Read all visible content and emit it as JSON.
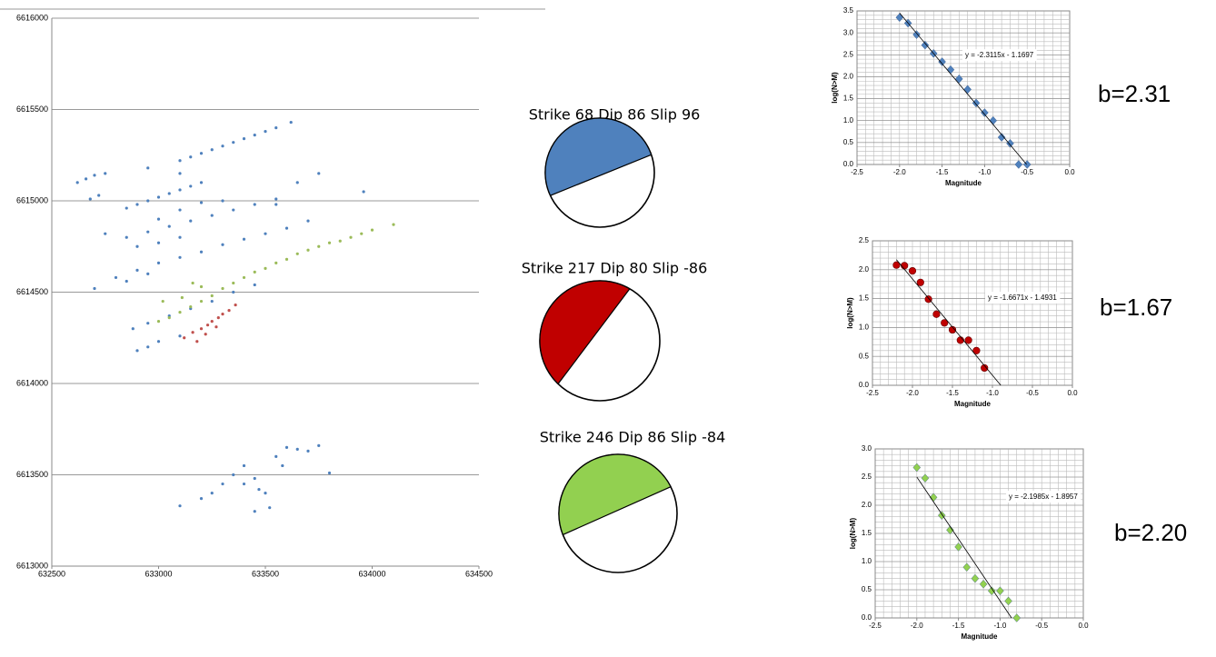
{
  "chart_data": [
    {
      "type": "scatter",
      "xlim": [
        632500,
        634500
      ],
      "xticks": [
        632500,
        633000,
        633500,
        634000,
        634500
      ],
      "ylim": [
        6613000,
        6616000
      ],
      "yticks": [
        6613000,
        6613500,
        6614000,
        6614500,
        6615000,
        6615500,
        6616000
      ],
      "grid": true,
      "marker": "circle",
      "series": [
        {
          "color": "#4f81bd",
          "x": [
            633100,
            633150,
            633200,
            633250,
            633300,
            633350,
            633400,
            633450,
            633500,
            633550,
            633620,
            632620,
            632660,
            632700,
            632750,
            632680,
            632720,
            632900,
            632950,
            633000,
            633050,
            633100,
            633150,
            633200,
            632850,
            633000,
            633100,
            633200,
            632750,
            632850,
            632950,
            633050,
            633150,
            633250,
            633350,
            633450,
            633550,
            632900,
            633000,
            633100,
            632800,
            632900,
            633000,
            633100,
            633200,
            633300,
            633400,
            633500,
            633600,
            633700,
            632850,
            632950,
            632700,
            632880,
            632950,
            633050,
            633150,
            633250,
            633350,
            633450,
            632900,
            632950,
            633000,
            633100,
            633300,
            633550,
            633750,
            633960,
            633650,
            632950,
            633100,
            633250,
            633300,
            633350,
            633400,
            633450,
            633500,
            633550,
            633600,
            633650,
            633700,
            633750,
            633800,
            633100,
            633200,
            633450,
            633520,
            633400,
            633470,
            633580
          ],
          "values": [
            6615220,
            6615240,
            6615260,
            6615280,
            6615300,
            6615320,
            6615340,
            6615360,
            6615380,
            6615400,
            6615430,
            6615100,
            6615120,
            6615140,
            6615150,
            6615010,
            6615030,
            6614980,
            6615000,
            6615020,
            6615040,
            6615060,
            6615080,
            6615100,
            6614960,
            6614900,
            6614950,
            6614990,
            6614820,
            6614800,
            6614830,
            6614860,
            6614890,
            6614920,
            6614950,
            6614980,
            6615010,
            6614750,
            6614770,
            6614800,
            6614580,
            6614620,
            6614660,
            6614690,
            6614720,
            6614760,
            6614790,
            6614820,
            6614850,
            6614890,
            6614560,
            6614600,
            6614520,
            6614300,
            6614330,
            6614370,
            6614410,
            6614450,
            6614500,
            6614540,
            6614180,
            6614200,
            6614230,
            6614260,
            6615000,
            6614980,
            6615150,
            6615050,
            6615100,
            6615180,
            6615150,
            6613400,
            6613450,
            6613500,
            6613550,
            6613480,
            6613400,
            6613600,
            6613650,
            6613640,
            6613630,
            6613660,
            6613510,
            6613330,
            6613370,
            6613300,
            6613320,
            6613450,
            6613420,
            6613550
          ]
        },
        {
          "color": "#9bbb59",
          "x": [
            633000,
            633050,
            633100,
            633150,
            633200,
            633250,
            633300,
            633350,
            633400,
            633450,
            633500,
            633550,
            633600,
            633650,
            633700,
            633750,
            633800,
            633850,
            633900,
            633950,
            634000,
            634100,
            633160,
            633200,
            633110,
            633020
          ],
          "values": [
            6614340,
            6614360,
            6614390,
            6614420,
            6614450,
            6614480,
            6614520,
            6614550,
            6614580,
            6614610,
            6614630,
            6614660,
            6614680,
            6614710,
            6614730,
            6614750,
            6614770,
            6614780,
            6614800,
            6614820,
            6614840,
            6614870,
            6614550,
            6614530,
            6614470,
            6614450
          ]
        },
        {
          "color": "#c0504d",
          "x": [
            633120,
            633160,
            633200,
            633230,
            633250,
            633280,
            633300,
            633330,
            633360,
            633220,
            633180,
            633270
          ],
          "values": [
            6614250,
            6614280,
            6614300,
            6614320,
            6614340,
            6614360,
            6614380,
            6614400,
            6614430,
            6614270,
            6614230,
            6614310
          ]
        }
      ]
    },
    {
      "type": "focal-mechanism",
      "title": "Strike 68 Dip 86 Slip 96",
      "strike": 68,
      "dip": 86,
      "slip": 96,
      "color": "#4f81bd"
    },
    {
      "type": "focal-mechanism",
      "title": "Strike 217 Dip 80 Slip -86",
      "strike": 217,
      "dip": 80,
      "slip": -86,
      "color": "#c00000"
    },
    {
      "type": "focal-mechanism",
      "title": "Strike 246 Dip 86 Slip -84",
      "strike": 246,
      "dip": 86,
      "slip": -84,
      "color": "#92d050"
    },
    {
      "type": "scatter",
      "xlabel": "Magnitude",
      "ylabel": "log(N>M)",
      "annotation": "b=2.31",
      "grid": true,
      "minor_grid": true,
      "marker": "diamond",
      "xlim": [
        -2.5,
        0
      ],
      "xticks": [
        -2.5,
        {
          "value": -2,
          "label": "-2.0"
        },
        -1.5,
        {
          "value": -1,
          "label": "-1.0"
        },
        -0.5,
        {
          "value": 0,
          "label": "0.0"
        }
      ],
      "ylim": [
        0,
        3.5
      ],
      "yticks": [
        {
          "value": 0,
          "label": "0.0"
        },
        0.5,
        {
          "value": 1,
          "label": "1.0"
        },
        1.5,
        {
          "value": 2,
          "label": "2.0"
        },
        2.5,
        {
          "value": 3,
          "label": "3.0"
        },
        3.5
      ],
      "series": [
        {
          "color": "#4f81bd",
          "x": [
            -2.0,
            -1.9,
            -1.8,
            -1.7,
            -1.6,
            -1.5,
            -1.4,
            -1.3,
            -1.2,
            -1.1,
            -1.0,
            -0.9,
            -0.8,
            -0.7,
            -0.6,
            -0.5
          ],
          "values": [
            3.35,
            3.22,
            2.96,
            2.72,
            2.53,
            2.34,
            2.16,
            1.95,
            1.71,
            1.4,
            1.18,
            1.0,
            0.62,
            0.48,
            0.0,
            0.0
          ]
        }
      ],
      "trendline": {
        "slope": -2.3115,
        "intercept": -1.1697,
        "label": "y = -2.3115x - 1.1697"
      }
    },
    {
      "type": "scatter",
      "xlabel": "Magnitude",
      "ylabel": "log(N>M)",
      "annotation": "b=1.67",
      "grid": true,
      "minor_grid": true,
      "marker": "circle",
      "xlim": [
        -2.5,
        0
      ],
      "xticks": [
        -2.5,
        {
          "value": -2,
          "label": "-2.0"
        },
        -1.5,
        {
          "value": -1,
          "label": "-1.0"
        },
        -0.5,
        {
          "value": 0,
          "label": "0.0"
        }
      ],
      "ylim": [
        0,
        2.5
      ],
      "yticks": [
        {
          "value": 0,
          "label": "0.0"
        },
        0.5,
        {
          "value": 1,
          "label": "1.0"
        },
        1.5,
        {
          "value": 2,
          "label": "2.0"
        },
        2.5
      ],
      "series": [
        {
          "color": "#c00000",
          "x": [
            -2.2,
            -2.1,
            -2.0,
            -1.9,
            -1.8,
            -1.7,
            -1.6,
            -1.5,
            -1.4,
            -1.3,
            -1.2,
            -1.1
          ],
          "values": [
            2.08,
            2.07,
            1.98,
            1.78,
            1.49,
            1.23,
            1.08,
            0.96,
            0.78,
            0.78,
            0.6,
            0.3
          ]
        }
      ],
      "trendline": {
        "slope": -1.6671,
        "intercept": -1.4931,
        "label": "y = -1.6671x - 1.4931"
      }
    },
    {
      "type": "scatter",
      "xlabel": "Magnitude",
      "ylabel": "log(N>M)",
      "annotation": "b=2.20",
      "grid": true,
      "minor_grid": true,
      "marker": "diamond",
      "xlim": [
        -2.5,
        0
      ],
      "xticks": [
        -2.5,
        {
          "value": -2,
          "label": "-2.0"
        },
        -1.5,
        {
          "value": -1,
          "label": "-1.0"
        },
        -0.5,
        {
          "value": 0,
          "label": "0.0"
        }
      ],
      "ylim": [
        0,
        3
      ],
      "yticks": [
        {
          "value": 0,
          "label": "0.0"
        },
        0.5,
        {
          "value": 1,
          "label": "1.0"
        },
        1.5,
        {
          "value": 2,
          "label": "2.0"
        },
        2.5,
        {
          "value": 3,
          "label": "3.0"
        }
      ],
      "series": [
        {
          "color": "#92d050",
          "x": [
            -2.0,
            -1.9,
            -1.8,
            -1.7,
            -1.6,
            -1.5,
            -1.4,
            -1.3,
            -1.2,
            -1.1,
            -1.0,
            -0.9,
            -0.8
          ],
          "values": [
            2.67,
            2.48,
            2.14,
            1.82,
            1.56,
            1.26,
            0.9,
            0.7,
            0.6,
            0.48,
            0.48,
            0.3,
            0.0
          ]
        }
      ],
      "trendline": {
        "slope": -2.1985,
        "intercept": -1.8957,
        "label": "y = -2.1985x - 1.8957"
      }
    }
  ]
}
